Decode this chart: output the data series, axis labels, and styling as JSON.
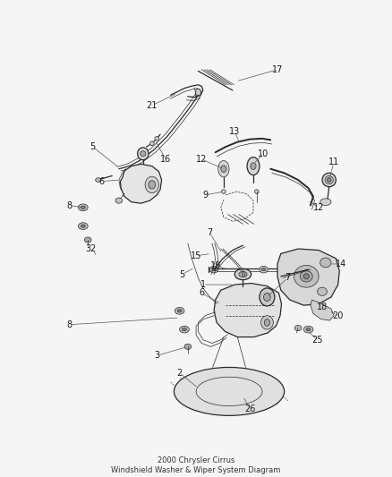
{
  "title": "2000 Chrysler Cirrus\nWindshield Washer & Wiper System Diagram",
  "background_color": "#f5f5f5",
  "line_color": "#2a2a2a",
  "label_color": "#1a1a1a",
  "fig_width": 4.38,
  "fig_height": 5.33,
  "dpi": 100,
  "lw_thin": 0.5,
  "lw_med": 0.9,
  "lw_thick": 1.4,
  "label_fontsize": 7.0,
  "title_fontsize": 6.0
}
